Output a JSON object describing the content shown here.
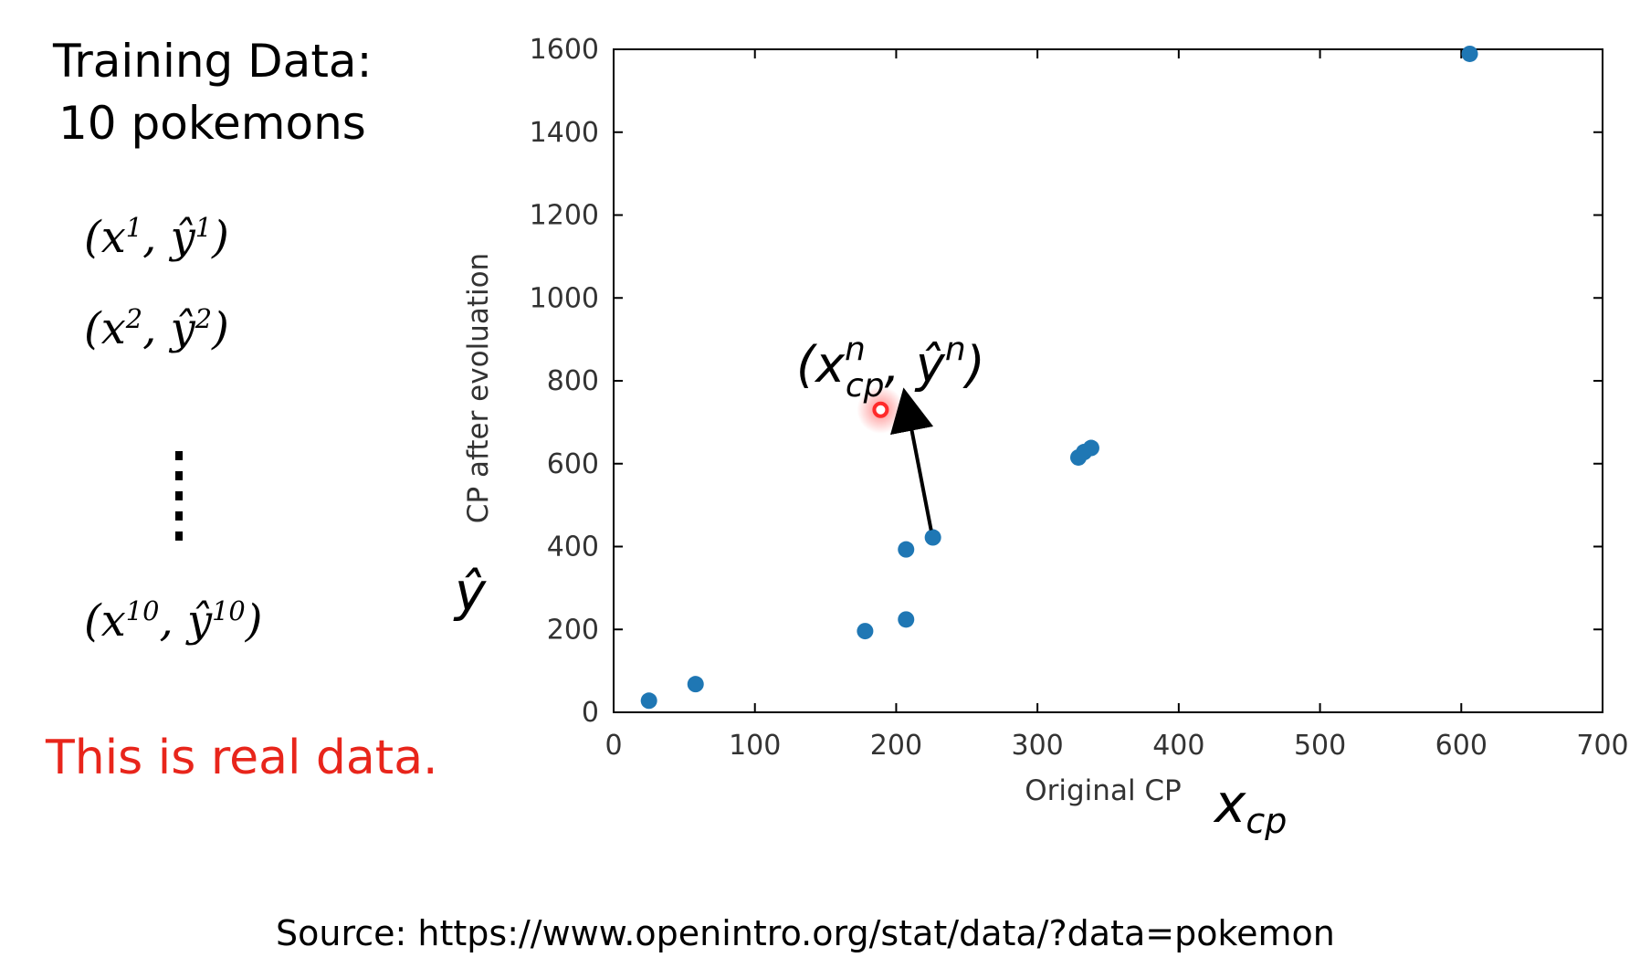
{
  "left_panel": {
    "title_line1": "Training Data:",
    "title_line2": "10 pokemons",
    "pairs": [
      "1",
      "2",
      "10"
    ],
    "note": "This is real data.",
    "note_color": "#e8251b"
  },
  "source": "Source: https://www.openintro.org/stat/data/?data=pokemon",
  "annotation": {
    "n": "n",
    "cp": "cp",
    "yhat_symbol": "ŷ",
    "xcp_symbol": "x",
    "highlight_color": "#ff2a2a"
  },
  "chart_data": {
    "type": "scatter",
    "xlabel": "Original CP",
    "ylabel": "CP after evoluation",
    "xlim": [
      0,
      700
    ],
    "ylim": [
      0,
      1600
    ],
    "x_ticks": [
      0,
      100,
      200,
      300,
      400,
      500,
      600,
      700
    ],
    "y_ticks": [
      0,
      200,
      400,
      600,
      800,
      1000,
      1200,
      1400,
      1600
    ],
    "point_color": "#1f77b4",
    "points": [
      {
        "x": 25,
        "y": 28
      },
      {
        "x": 58,
        "y": 68
      },
      {
        "x": 178,
        "y": 196
      },
      {
        "x": 207,
        "y": 224
      },
      {
        "x": 207,
        "y": 393
      },
      {
        "x": 226,
        "y": 422
      },
      {
        "x": 329,
        "y": 615
      },
      {
        "x": 333,
        "y": 628
      },
      {
        "x": 338,
        "y": 638
      },
      {
        "x": 606,
        "y": 1589
      }
    ],
    "highlight_point": {
      "x": 189,
      "y": 730
    }
  }
}
